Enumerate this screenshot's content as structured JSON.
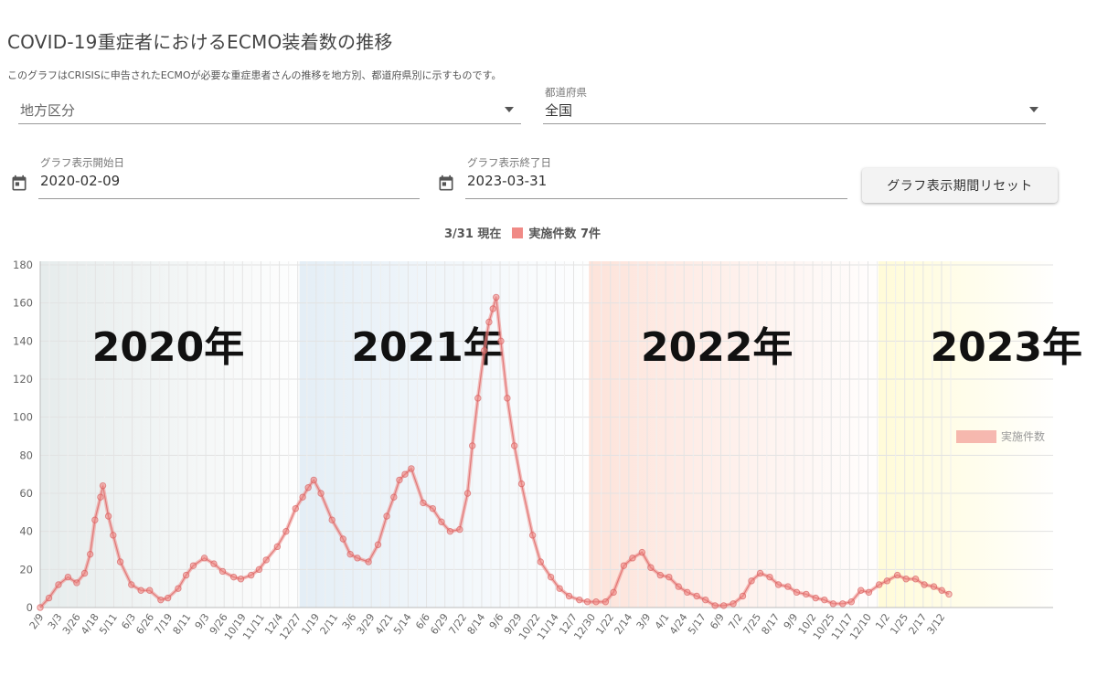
{
  "header": {
    "title": "COVID-19重症者におけるECMO装着数の推移",
    "description": "このグラフはCRISISに申告されたECMOが必要な重症患者さんの推移を地方別、都道府県別に示すものです。"
  },
  "filters": {
    "region_placeholder": "地方区分",
    "prefecture_label": "都道府県",
    "prefecture_value": "全国",
    "start_label": "グラフ表示開始日",
    "start_value": "2020-02-09",
    "end_label": "グラフ表示終了日",
    "end_value": "2023-03-31",
    "reset_label": "グラフ表示期間リセット"
  },
  "status": {
    "date_text": "3/31 現在",
    "count_text": "実施件数 7件",
    "swatch_color": "#f08a86"
  },
  "chart_data": {
    "type": "line",
    "ylim": [
      0,
      180
    ],
    "yticks": [
      0,
      20,
      40,
      60,
      80,
      100,
      120,
      140,
      160,
      180
    ],
    "grid": true,
    "legend_position": "right",
    "xlim": [
      "2020-02-09",
      "2023-03-31"
    ],
    "x_tick_labels": [
      "2/9",
      "3/3",
      "3/26",
      "4/18",
      "5/11",
      "6/3",
      "6/26",
      "7/19",
      "8/11",
      "9/3",
      "9/26",
      "10/19",
      "11/11",
      "12/4",
      "12/27",
      "1/19",
      "2/11",
      "3/6",
      "3/29",
      "4/21",
      "5/14",
      "6/6",
      "6/29",
      "7/22",
      "8/14",
      "9/6",
      "9/29",
      "10/22",
      "11/14",
      "12/7",
      "12/30",
      "1/22",
      "2/14",
      "3/9",
      "4/1",
      "4/24",
      "5/17",
      "6/9",
      "7/2",
      "7/25",
      "8/17",
      "9/9",
      "10/2",
      "10/25",
      "11/17",
      "12/10",
      "1/2",
      "1/25",
      "2/17",
      "3/12"
    ],
    "year_bands": [
      {
        "label": "2020年",
        "start": "2020-02-09",
        "end": "2020-12-31",
        "color": "#e6ecec"
      },
      {
        "label": "2021年",
        "start": "2021-01-01",
        "end": "2021-12-31",
        "color": "#e4eef6"
      },
      {
        "label": "2022年",
        "start": "2022-01-01",
        "end": "2022-12-31",
        "color": "#fde3da"
      },
      {
        "label": "2023年",
        "start": "2023-01-01",
        "end": "2023-03-31",
        "color": "#fffbd8"
      }
    ],
    "series": [
      {
        "name": "実施件数",
        "color": "#f08a86",
        "points": [
          [
            "2020-02-09",
            0
          ],
          [
            "2020-02-20",
            5
          ],
          [
            "2020-03-03",
            12
          ],
          [
            "2020-03-15",
            16
          ],
          [
            "2020-03-26",
            13
          ],
          [
            "2020-04-05",
            18
          ],
          [
            "2020-04-12",
            28
          ],
          [
            "2020-04-18",
            46
          ],
          [
            "2020-04-25",
            58
          ],
          [
            "2020-04-28",
            64
          ],
          [
            "2020-05-05",
            48
          ],
          [
            "2020-05-11",
            38
          ],
          [
            "2020-05-20",
            24
          ],
          [
            "2020-06-03",
            12
          ],
          [
            "2020-06-15",
            9
          ],
          [
            "2020-06-26",
            9
          ],
          [
            "2020-07-10",
            4
          ],
          [
            "2020-07-19",
            5
          ],
          [
            "2020-08-01",
            10
          ],
          [
            "2020-08-11",
            17
          ],
          [
            "2020-08-20",
            22
          ],
          [
            "2020-09-03",
            26
          ],
          [
            "2020-09-15",
            23
          ],
          [
            "2020-09-26",
            19
          ],
          [
            "2020-10-10",
            16
          ],
          [
            "2020-10-19",
            15
          ],
          [
            "2020-11-01",
            17
          ],
          [
            "2020-11-11",
            20
          ],
          [
            "2020-11-20",
            25
          ],
          [
            "2020-12-04",
            32
          ],
          [
            "2020-12-15",
            40
          ],
          [
            "2020-12-27",
            52
          ],
          [
            "2021-01-05",
            58
          ],
          [
            "2021-01-12",
            63
          ],
          [
            "2021-01-19",
            67
          ],
          [
            "2021-01-28",
            60
          ],
          [
            "2021-02-11",
            46
          ],
          [
            "2021-02-25",
            36
          ],
          [
            "2021-03-06",
            28
          ],
          [
            "2021-03-15",
            26
          ],
          [
            "2021-03-29",
            24
          ],
          [
            "2021-04-10",
            33
          ],
          [
            "2021-04-21",
            48
          ],
          [
            "2021-04-30",
            58
          ],
          [
            "2021-05-07",
            67
          ],
          [
            "2021-05-14",
            70
          ],
          [
            "2021-05-22",
            73
          ],
          [
            "2021-06-06",
            55
          ],
          [
            "2021-06-18",
            52
          ],
          [
            "2021-06-29",
            45
          ],
          [
            "2021-07-10",
            40
          ],
          [
            "2021-07-22",
            41
          ],
          [
            "2021-08-01",
            60
          ],
          [
            "2021-08-07",
            85
          ],
          [
            "2021-08-14",
            110
          ],
          [
            "2021-08-22",
            135
          ],
          [
            "2021-08-28",
            150
          ],
          [
            "2021-09-02",
            157
          ],
          [
            "2021-09-06",
            163
          ],
          [
            "2021-09-12",
            140
          ],
          [
            "2021-09-20",
            110
          ],
          [
            "2021-09-29",
            85
          ],
          [
            "2021-10-08",
            65
          ],
          [
            "2021-10-22",
            38
          ],
          [
            "2021-11-01",
            24
          ],
          [
            "2021-11-14",
            16
          ],
          [
            "2021-11-25",
            10
          ],
          [
            "2021-12-07",
            6
          ],
          [
            "2021-12-20",
            4
          ],
          [
            "2021-12-30",
            3
          ],
          [
            "2022-01-10",
            3
          ],
          [
            "2022-01-22",
            3
          ],
          [
            "2022-02-01",
            8
          ],
          [
            "2022-02-14",
            22
          ],
          [
            "2022-02-25",
            26
          ],
          [
            "2022-03-09",
            29
          ],
          [
            "2022-03-20",
            21
          ],
          [
            "2022-04-01",
            17
          ],
          [
            "2022-04-12",
            16
          ],
          [
            "2022-04-24",
            11
          ],
          [
            "2022-05-05",
            8
          ],
          [
            "2022-05-17",
            6
          ],
          [
            "2022-05-28",
            4
          ],
          [
            "2022-06-09",
            1
          ],
          [
            "2022-06-20",
            1
          ],
          [
            "2022-07-02",
            2
          ],
          [
            "2022-07-14",
            6
          ],
          [
            "2022-07-25",
            14
          ],
          [
            "2022-08-05",
            18
          ],
          [
            "2022-08-17",
            16
          ],
          [
            "2022-08-28",
            12
          ],
          [
            "2022-09-09",
            11
          ],
          [
            "2022-09-20",
            8
          ],
          [
            "2022-10-02",
            7
          ],
          [
            "2022-10-14",
            5
          ],
          [
            "2022-10-25",
            4
          ],
          [
            "2022-11-05",
            2
          ],
          [
            "2022-11-17",
            2
          ],
          [
            "2022-11-28",
            3
          ],
          [
            "2022-12-10",
            9
          ],
          [
            "2022-12-20",
            8
          ],
          [
            "2023-01-02",
            12
          ],
          [
            "2023-01-12",
            14
          ],
          [
            "2023-01-25",
            17
          ],
          [
            "2023-02-05",
            15
          ],
          [
            "2023-02-17",
            15
          ],
          [
            "2023-02-28",
            12
          ],
          [
            "2023-03-12",
            11
          ],
          [
            "2023-03-22",
            9
          ],
          [
            "2023-03-31",
            7
          ]
        ]
      }
    ]
  }
}
